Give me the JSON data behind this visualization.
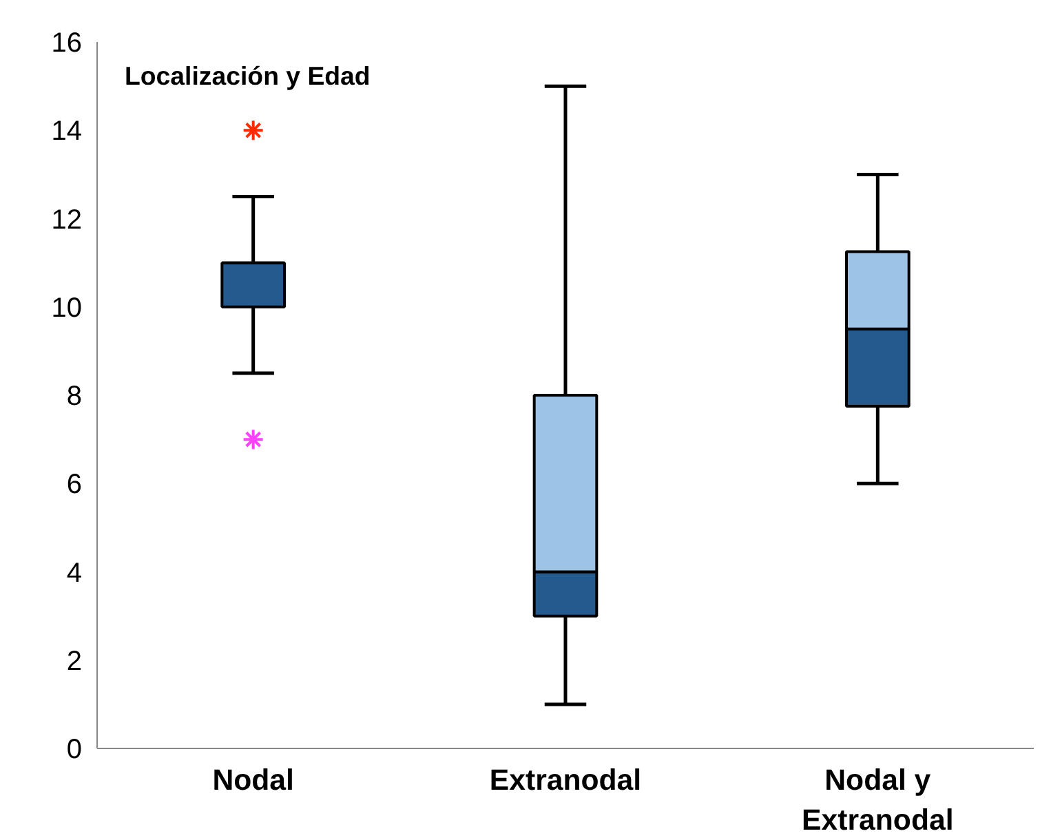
{
  "chart_data": {
    "type": "box",
    "title": "Localización y Edad",
    "categories": [
      "Nodal",
      "Extranodal",
      "Nodal y\nExtranodal"
    ],
    "series": [
      {
        "colors": [
          [
            "#245a8d",
            "#9dc3e6"
          ],
          [
            "#245a8d",
            "#9dc3e6"
          ],
          [
            "#245a8d",
            "#9dc3e6"
          ]
        ],
        "boxes": [
          {
            "low": 8.5,
            "q1": 10,
            "median": 11,
            "q3": 11,
            "high": 12.5
          },
          {
            "low": 1,
            "q1": 3,
            "median": 4,
            "q3": 8,
            "high": 15
          },
          {
            "low": 6,
            "q1": 7.75,
            "median": 9.5,
            "q3": 11.25,
            "high": 13
          }
        ]
      },
      {
        "type": "scatter",
        "x": [
          "Nodal",
          "Nodal"
        ],
        "values": [
          14,
          7
        ],
        "colors": [
          "#ff2a00",
          "#ff40ff"
        ],
        "marker": "cross"
      }
    ],
    "ylim": [
      0,
      16
    ],
    "yticks": [
      0,
      2,
      4,
      6,
      8,
      10,
      12,
      14,
      16
    ],
    "grid": false
  }
}
